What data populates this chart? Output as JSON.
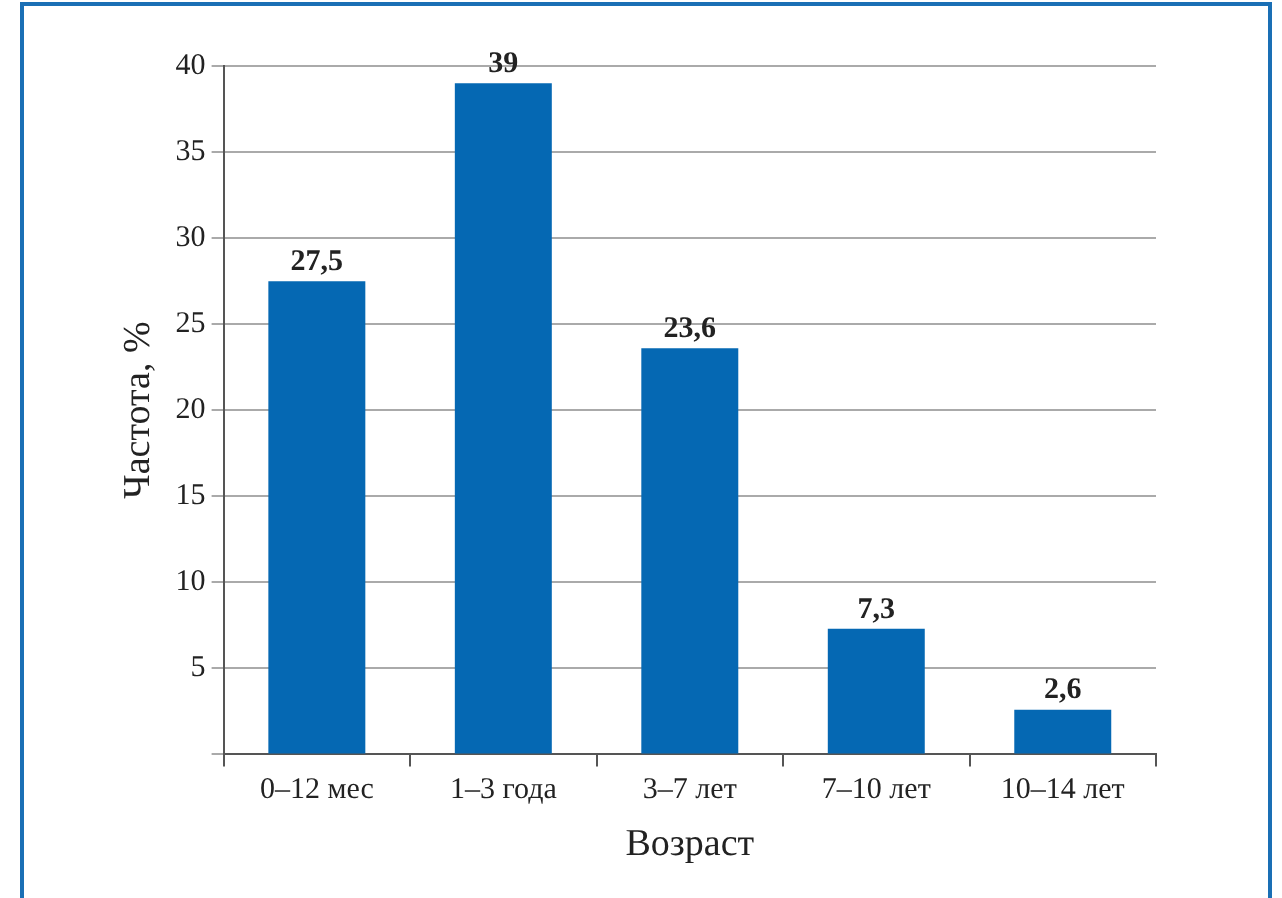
{
  "chart_data": {
    "type": "bar",
    "xlabel": "Возраст",
    "ylabel": "Частота, %",
    "categories": [
      "0–12 мес",
      "1–3 года",
      "3–7 лет",
      "7–10 лет",
      "10–14 лет"
    ],
    "values": [
      27.5,
      39,
      23.6,
      7.3,
      2.6
    ],
    "value_labels": [
      "27,5",
      "39",
      "23,6",
      "7,3",
      "2,6"
    ],
    "color": "#0568b3",
    "ylim": [
      0,
      40
    ],
    "yticks": [
      {
        "value": 0,
        "label": null
      },
      5,
      10,
      15,
      20,
      25,
      30,
      35,
      40
    ],
    "grid": "y",
    "legend": false
  }
}
